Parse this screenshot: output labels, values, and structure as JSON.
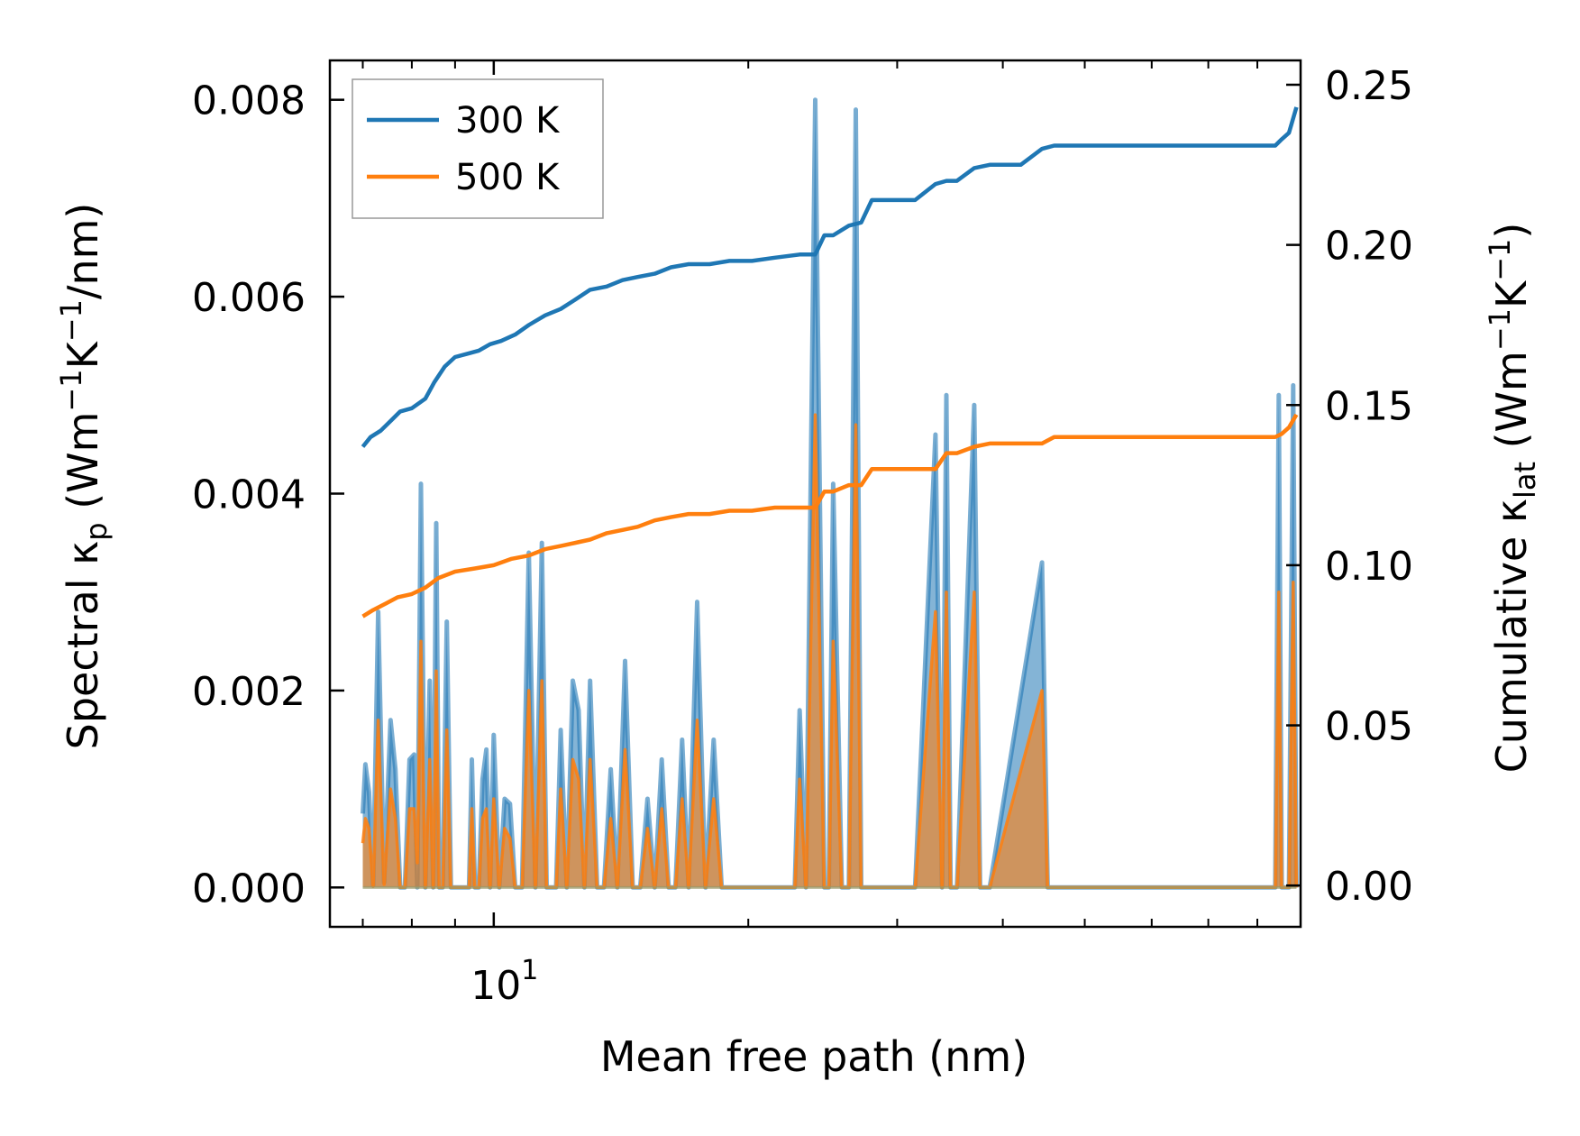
{
  "chart_data": {
    "type": "line",
    "x_scale": "log",
    "xlabel": "Mean free path (nm)",
    "xlim": [
      6.4,
      90
    ],
    "xticks": [
      {
        "value": 10,
        "base": "10",
        "exponent": "1"
      }
    ],
    "ylabel_left": {
      "prefix": "Spectral κ",
      "subscript": "p",
      "suffix_open": " (Wm",
      "sup1": "−1",
      "mid": "K",
      "sup2": "−1",
      "tail": "/nm)"
    },
    "ylabel_right": {
      "prefix": "Cumulative κ",
      "subscript": "lat",
      "suffix_open": " (Wm",
      "sup1": "−1",
      "mid": "K",
      "sup2": "−1",
      "tail": ")"
    },
    "ylim_left": [
      -0.0004,
      0.0084
    ],
    "ylim_right": [
      -0.0129,
      0.2576
    ],
    "yticks_left": [
      "0.000",
      "0.002",
      "0.004",
      "0.006",
      "0.008"
    ],
    "yticks_right": [
      "0.00",
      "0.05",
      "0.10",
      "0.15",
      "0.20",
      "0.25"
    ],
    "legend": {
      "position": "top-left",
      "entries": [
        {
          "name": "300 K",
          "color": "#1f77b4"
        },
        {
          "name": "500 K",
          "color": "#ff7f0e"
        }
      ]
    },
    "series": [
      {
        "name": "300 K",
        "color": "#1f77b4",
        "spectral": {
          "x": [
            7.0,
            7.05,
            7.12,
            7.2,
            7.3,
            7.42,
            7.55,
            7.65,
            7.75,
            7.85,
            7.95,
            8.05,
            8.12,
            8.2,
            8.3,
            8.4,
            8.48,
            8.55,
            8.62,
            8.7,
            8.8,
            8.9,
            9.0,
            9.05,
            9.15,
            9.25,
            9.35,
            9.42,
            9.5,
            9.6,
            9.7,
            9.8,
            9.9,
            10.0,
            10.15,
            10.3,
            10.45,
            10.6,
            10.8,
            11.0,
            11.2,
            11.4,
            11.55,
            11.7,
            11.85,
            12.0,
            12.2,
            12.4,
            12.6,
            12.8,
            13.0,
            13.25,
            13.5,
            13.75,
            14.0,
            14.3,
            14.6,
            14.9,
            15.2,
            15.5,
            15.8,
            16.1,
            16.4,
            16.7,
            17.0,
            17.4,
            17.8,
            18.2,
            18.6,
            19.0,
            20.2,
            21.5,
            22.7,
            23.0,
            23.4,
            24.0,
            24.6,
            24.9,
            25.2,
            25.8,
            26.3,
            26.8,
            27.2,
            27.6,
            28.0,
            28.4,
            29.5,
            31.5,
            33.3,
            33.9,
            34.3,
            34.7,
            35.3,
            37.0,
            37.6,
            38.1,
            38.6,
            44.5,
            45.2,
            45.9,
            84.0,
            84.8,
            85.5,
            87.2,
            88.2,
            89.0
          ],
          "values": [
            0.00075,
            0.00125,
            0.00097,
            2e-05,
            0.0028,
            5e-05,
            0.0017,
            0.0012,
            0.0,
            0.0,
            0.0013,
            0.00135,
            0.0,
            0.0041,
            0.0,
            0.0021,
            0.0,
            0.0037,
            0.0,
            0.0,
            0.0027,
            0.0,
            0.0,
            0.0,
            0.0,
            0.0,
            0.0,
            0.0013,
            0.0,
            0.0,
            0.0011,
            0.0014,
            0.0,
            0.00155,
            0.0,
            0.0009,
            0.00085,
            0.0,
            0.0,
            0.0034,
            0.0,
            0.0035,
            0.0,
            0.0,
            0.0,
            0.0016,
            0.0,
            0.0021,
            0.0018,
            0.0,
            0.0021,
            0.0,
            0.0,
            0.0012,
            0.0,
            0.0023,
            0.0,
            0.0,
            0.0009,
            0.0,
            0.0013,
            0.0,
            0.0,
            0.0015,
            0.0,
            0.0029,
            0.0,
            0.0015,
            0.0,
            0.0,
            0.0,
            0.0,
            0.0,
            0.0018,
            0.0,
            0.008,
            0.0,
            0.0,
            0.0041,
            0.0,
            0.0,
            0.0079,
            0.0,
            0.0,
            0.0,
            0.0,
            0.0,
            0.0,
            0.0046,
            0.0,
            0.005,
            0.0,
            0.0,
            0.0049,
            0.0,
            0.0,
            0.0,
            0.0033,
            0.0,
            0.0,
            0.0,
            0.005,
            0.0,
            0.0,
            0.0051,
            0.0
          ]
        },
        "cumulative": {
          "x": [
            7.0,
            7.15,
            7.35,
            7.55,
            7.75,
            8.0,
            8.3,
            8.5,
            8.75,
            9.0,
            9.3,
            9.6,
            9.9,
            10.2,
            10.6,
            11.0,
            11.5,
            12.0,
            12.5,
            13.0,
            13.6,
            14.2,
            14.8,
            15.5,
            16.2,
            17.0,
            18.0,
            19.0,
            20.2,
            21.5,
            23.0,
            24.0,
            24.6,
            25.2,
            26.3,
            27.2,
            28.0,
            29.5,
            31.5,
            33.3,
            34.3,
            35.3,
            37.0,
            38.6,
            42.0,
            44.5,
            46.0,
            55.0,
            70.0,
            84.0,
            85.5,
            87.2,
            89.0
          ],
          "values": [
            0.137,
            0.14,
            0.142,
            0.145,
            0.148,
            0.149,
            0.152,
            0.157,
            0.162,
            0.165,
            0.166,
            0.167,
            0.169,
            0.17,
            0.172,
            0.175,
            0.178,
            0.18,
            0.183,
            0.186,
            0.187,
            0.189,
            0.19,
            0.191,
            0.193,
            0.194,
            0.194,
            0.195,
            0.195,
            0.196,
            0.197,
            0.197,
            0.203,
            0.203,
            0.206,
            0.207,
            0.214,
            0.214,
            0.214,
            0.219,
            0.22,
            0.22,
            0.224,
            0.225,
            0.225,
            0.23,
            0.231,
            0.231,
            0.231,
            0.231,
            0.233,
            0.235,
            0.243
          ]
        }
      },
      {
        "name": "500 K",
        "color": "#ff7f0e",
        "spectral": {
          "x": [
            7.0,
            7.05,
            7.12,
            7.2,
            7.3,
            7.42,
            7.55,
            7.65,
            7.75,
            7.85,
            7.95,
            8.05,
            8.12,
            8.2,
            8.3,
            8.4,
            8.48,
            8.55,
            8.62,
            8.7,
            8.8,
            8.9,
            9.0,
            9.05,
            9.15,
            9.25,
            9.35,
            9.42,
            9.5,
            9.6,
            9.7,
            9.8,
            9.9,
            10.0,
            10.15,
            10.3,
            10.45,
            10.6,
            10.8,
            11.0,
            11.2,
            11.4,
            11.55,
            11.7,
            11.85,
            12.0,
            12.2,
            12.4,
            12.6,
            12.8,
            13.0,
            13.25,
            13.5,
            13.75,
            14.0,
            14.3,
            14.6,
            14.9,
            15.2,
            15.5,
            15.8,
            16.1,
            16.4,
            16.7,
            17.0,
            17.4,
            17.8,
            18.2,
            18.6,
            19.0,
            20.2,
            21.5,
            22.7,
            23.0,
            23.4,
            24.0,
            24.6,
            24.9,
            25.2,
            25.8,
            26.3,
            26.8,
            27.2,
            27.6,
            28.0,
            28.4,
            29.5,
            31.5,
            33.3,
            33.9,
            34.3,
            34.7,
            35.3,
            37.0,
            37.6,
            38.1,
            38.6,
            44.5,
            45.2,
            45.9,
            84.0,
            84.8,
            85.5,
            87.2,
            88.2,
            89.0
          ],
          "values": [
            0.00045,
            0.0007,
            0.0006,
            1e-05,
            0.0017,
            3e-05,
            0.001,
            0.0007,
            0.0,
            0.0,
            0.0008,
            0.0008,
            0.00025,
            0.0025,
            0.0,
            0.0013,
            0.0,
            0.0022,
            0.0,
            0.0,
            0.0016,
            0.0,
            0.0,
            0.0,
            0.0,
            0.0,
            0.0,
            0.0008,
            0.0,
            0.0,
            0.0007,
            0.0008,
            0.0,
            0.0009,
            0.0,
            0.0006,
            0.0005,
            0.0,
            0.0,
            0.002,
            0.0,
            0.0021,
            0.0,
            0.0,
            0.0,
            0.001,
            0.0,
            0.0013,
            0.0011,
            0.0,
            0.0013,
            0.0,
            0.0,
            0.0007,
            0.0,
            0.0014,
            0.0,
            0.0,
            0.0006,
            0.0,
            0.0008,
            0.0,
            0.0,
            0.0009,
            0.0,
            0.0017,
            0.0,
            0.0009,
            0.0,
            0.0,
            0.0,
            0.0,
            0.0,
            0.0011,
            0.0,
            0.0048,
            0.0,
            0.0,
            0.0025,
            0.0,
            0.0,
            0.0047,
            0.0,
            0.0,
            0.0,
            0.0,
            0.0,
            0.0,
            0.0028,
            0.0,
            0.003,
            0.0,
            0.0,
            0.003,
            0.0,
            0.0,
            0.0,
            0.002,
            0.0,
            0.0,
            0.0,
            0.003,
            0.0,
            0.0,
            0.0031,
            0.0
          ]
        },
        "cumulative": {
          "x": [
            7.0,
            7.2,
            7.45,
            7.7,
            8.0,
            8.3,
            8.6,
            9.0,
            9.5,
            10.0,
            10.5,
            11.0,
            11.5,
            12.0,
            12.5,
            13.0,
            13.6,
            14.2,
            14.8,
            15.5,
            16.2,
            17.0,
            18.0,
            19.0,
            20.2,
            21.5,
            23.0,
            24.0,
            24.6,
            25.2,
            26.3,
            27.2,
            28.0,
            29.5,
            31.5,
            33.3,
            34.3,
            35.3,
            37.0,
            38.6,
            42.0,
            44.5,
            46.0,
            55.0,
            70.0,
            84.0,
            85.5,
            87.2,
            89.0
          ],
          "values": [
            0.084,
            0.086,
            0.088,
            0.09,
            0.091,
            0.093,
            0.096,
            0.098,
            0.099,
            0.1,
            0.102,
            0.103,
            0.105,
            0.106,
            0.107,
            0.108,
            0.11,
            0.111,
            0.112,
            0.114,
            0.115,
            0.116,
            0.116,
            0.117,
            0.117,
            0.118,
            0.118,
            0.118,
            0.123,
            0.123,
            0.125,
            0.125,
            0.13,
            0.13,
            0.13,
            0.13,
            0.135,
            0.135,
            0.137,
            0.138,
            0.138,
            0.138,
            0.14,
            0.14,
            0.14,
            0.14,
            0.141,
            0.143,
            0.147
          ]
        }
      }
    ]
  }
}
